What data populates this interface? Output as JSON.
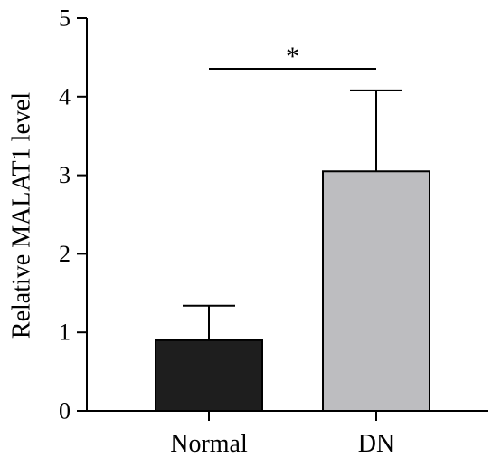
{
  "chart_data": {
    "type": "bar",
    "categories": [
      "Normal",
      "DN"
    ],
    "values": [
      0.9,
      3.05
    ],
    "errors": [
      0.44,
      1.03
    ],
    "colors": [
      "#1e1e1e",
      "#bdbdc0"
    ],
    "title": "",
    "xlabel": "",
    "ylabel": "Relative MALAT1 level",
    "ylim": [
      0,
      5
    ],
    "yticks": [
      0,
      1,
      2,
      3,
      4,
      5
    ],
    "significance": {
      "pair": [
        0,
        1
      ],
      "label": "*"
    },
    "grid": false
  }
}
